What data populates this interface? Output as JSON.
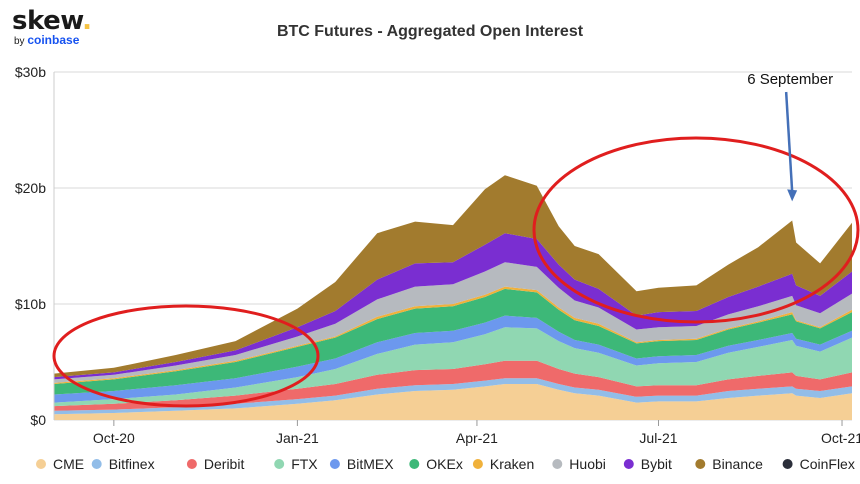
{
  "logo": {
    "word": "skew",
    "by_prefix": "by ",
    "by_brand": "coinbase"
  },
  "chart_data": {
    "type": "area",
    "stacked": true,
    "title": "BTC Futures - Aggregated Open Interest",
    "x_range": [
      "2020-09-01",
      "2021-10-06"
    ],
    "y_range": [
      0,
      30
    ],
    "y_ticks": [
      {
        "value": 0,
        "label": "$0"
      },
      {
        "value": 10,
        "label": "$10b"
      },
      {
        "value": 20,
        "label": "$20b"
      },
      {
        "value": 30,
        "label": "$30b"
      }
    ],
    "x_ticks": [
      {
        "date": "2020-10-01",
        "label": "Oct-20"
      },
      {
        "date": "2021-01-01",
        "label": "Jan-21"
      },
      {
        "date": "2021-04-01",
        "label": "Apr-21"
      },
      {
        "date": "2021-07-01",
        "label": "Jul-21"
      },
      {
        "date": "2021-10-01",
        "label": "Oct-21"
      }
    ],
    "grid_horizontal": true,
    "legend_position": "bottom",
    "x": [
      "2020-09-01",
      "2020-10-01",
      "2020-11-01",
      "2020-12-01",
      "2021-01-01",
      "2021-01-20",
      "2021-02-10",
      "2021-03-01",
      "2021-03-20",
      "2021-04-05",
      "2021-04-15",
      "2021-05-01",
      "2021-05-12",
      "2021-05-20",
      "2021-06-01",
      "2021-06-20",
      "2021-07-01",
      "2021-07-20",
      "2021-08-05",
      "2021-08-20",
      "2021-09-06",
      "2021-09-08",
      "2021-09-20",
      "2021-10-06"
    ],
    "series": [
      {
        "name": "CME",
        "color": "#f5cf95",
        "values": [
          0.5,
          0.6,
          0.8,
          1.0,
          1.4,
          1.7,
          2.2,
          2.5,
          2.6,
          2.9,
          3.1,
          3.1,
          2.6,
          2.3,
          2.1,
          1.5,
          1.6,
          1.6,
          1.9,
          2.1,
          2.3,
          2.1,
          1.9,
          2.3
        ]
      },
      {
        "name": "Bitfinex",
        "color": "#92bde8",
        "values": [
          0.3,
          0.3,
          0.3,
          0.4,
          0.4,
          0.4,
          0.5,
          0.5,
          0.5,
          0.5,
          0.5,
          0.5,
          0.5,
          0.5,
          0.5,
          0.5,
          0.5,
          0.5,
          0.6,
          0.6,
          0.6,
          0.6,
          0.6,
          0.6
        ]
      },
      {
        "name": "Deribit",
        "color": "#ef6a6a",
        "values": [
          0.4,
          0.5,
          0.6,
          0.7,
          0.9,
          1.0,
          1.2,
          1.3,
          1.3,
          1.4,
          1.5,
          1.5,
          1.3,
          1.2,
          1.1,
          0.9,
          0.9,
          0.9,
          1.0,
          1.1,
          1.2,
          1.1,
          1.0,
          1.2
        ]
      },
      {
        "name": "FTX",
        "color": "#90d7b2",
        "values": [
          0.3,
          0.4,
          0.5,
          0.7,
          1.0,
          1.3,
          1.8,
          2.2,
          2.3,
          2.6,
          2.9,
          2.8,
          2.4,
          2.2,
          2.1,
          1.8,
          1.9,
          2.0,
          2.3,
          2.5,
          2.8,
          2.6,
          2.4,
          3.0
        ]
      },
      {
        "name": "BitMEX",
        "color": "#6c98ee",
        "values": [
          0.7,
          0.7,
          0.8,
          0.8,
          0.9,
          0.9,
          1.0,
          1.0,
          1.0,
          1.0,
          1.0,
          0.9,
          0.8,
          0.7,
          0.7,
          0.6,
          0.6,
          0.6,
          0.6,
          0.6,
          0.6,
          0.6,
          0.6,
          0.6
        ]
      },
      {
        "name": "OKEx",
        "color": "#3db878",
        "values": [
          0.9,
          1.0,
          1.2,
          1.4,
          1.7,
          1.8,
          2.0,
          2.1,
          2.1,
          2.2,
          2.3,
          2.2,
          1.9,
          1.7,
          1.6,
          1.3,
          1.3,
          1.3,
          1.4,
          1.5,
          1.6,
          1.5,
          1.4,
          1.6
        ]
      },
      {
        "name": "Kraken",
        "color": "#f0b13b",
        "values": [
          0.1,
          0.1,
          0.1,
          0.1,
          0.1,
          0.1,
          0.2,
          0.2,
          0.2,
          0.2,
          0.2,
          0.2,
          0.2,
          0.2,
          0.2,
          0.1,
          0.1,
          0.1,
          0.1,
          0.1,
          0.2,
          0.1,
          0.1,
          0.2
        ]
      },
      {
        "name": "Huobi",
        "color": "#b6babf",
        "values": [
          0.3,
          0.3,
          0.4,
          0.5,
          0.8,
          1.1,
          1.5,
          1.7,
          1.7,
          2.0,
          2.1,
          2.0,
          1.7,
          1.5,
          1.4,
          1.1,
          1.1,
          1.1,
          1.2,
          1.3,
          1.4,
          1.3,
          1.2,
          1.4
        ]
      },
      {
        "name": "Bybit",
        "color": "#7a2ed1",
        "values": [
          0.2,
          0.2,
          0.3,
          0.4,
          0.8,
          1.1,
          1.7,
          2.0,
          1.9,
          2.3,
          2.5,
          2.4,
          2.0,
          1.8,
          1.6,
          1.2,
          1.3,
          1.3,
          1.5,
          1.7,
          1.9,
          1.7,
          1.5,
          1.9
        ]
      },
      {
        "name": "Binance",
        "color": "#a27b2e",
        "values": [
          0.3,
          0.4,
          0.6,
          0.8,
          1.6,
          2.5,
          4.0,
          3.6,
          3.2,
          4.8,
          5.0,
          4.6,
          3.3,
          2.9,
          3.0,
          2.1,
          2.1,
          2.2,
          2.8,
          3.4,
          4.6,
          3.7,
          2.8,
          4.2
        ]
      },
      {
        "name": "CoinFlex",
        "color": "#2b2f3a",
        "values": [
          0,
          0,
          0,
          0,
          0,
          0,
          0,
          0,
          0,
          0,
          0,
          0,
          0,
          0,
          0,
          0,
          0,
          0,
          0,
          0,
          0,
          0,
          0,
          0
        ]
      }
    ],
    "annotations": [
      {
        "text": "6 September",
        "date": "2021-09-06",
        "value": 18.5
      }
    ]
  }
}
